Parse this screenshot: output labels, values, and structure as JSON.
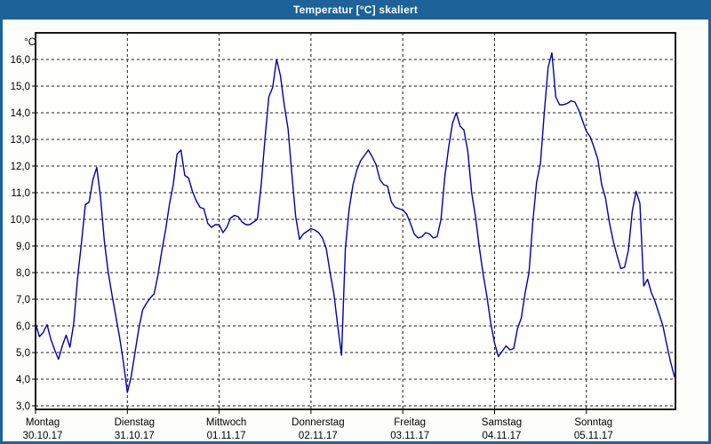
{
  "window": {
    "title": "Temperatur [°C] skaliert",
    "title_bar_color": "#1d6299",
    "border_color": "#1d6299",
    "background_color": "#fdfdfa"
  },
  "chart_data": {
    "type": "line",
    "title": "Temperatur [°C] skaliert",
    "ylabel": "°C",
    "unit_label": "°C",
    "grid": "dashed",
    "legend": "none",
    "ylim": [
      2.87,
      17.0
    ],
    "y_tick_values": [
      16,
      15,
      14,
      13,
      12,
      11,
      10,
      9,
      8,
      7,
      6,
      5,
      4,
      3
    ],
    "y_tick_labels": [
      "16,0",
      "15,0",
      "14,0",
      "13,0",
      "12,0",
      "11,0",
      "10,0",
      "9,0",
      "8,0",
      "7,0",
      "6,0",
      "5,0",
      "4,0",
      "3,0"
    ],
    "x_total_hours": 168,
    "x_ticks": [
      {
        "hour": 0,
        "day": "Montag",
        "date": "30.10.17"
      },
      {
        "hour": 24,
        "day": "Dienstag",
        "date": "31.10.17"
      },
      {
        "hour": 48,
        "day": "Mittwoch",
        "date": "01.11.17"
      },
      {
        "hour": 72,
        "day": "Donnerstag",
        "date": "02.11.17"
      },
      {
        "hour": 96,
        "day": "Freitag",
        "date": "03.11.17"
      },
      {
        "hour": 120,
        "day": "Samstag",
        "date": "04.11.17"
      },
      {
        "hour": 144,
        "day": "Sonntag",
        "date": "05.11.17"
      }
    ],
    "series": [
      {
        "name": "Temperatur",
        "color": "#0000a8",
        "x_step_hours": 1,
        "values": [
          6.1,
          5.6,
          5.75,
          6.05,
          5.5,
          5.1,
          4.75,
          5.25,
          5.65,
          5.2,
          6.1,
          7.8,
          9.1,
          10.55,
          10.65,
          11.5,
          11.95,
          10.8,
          9.15,
          8.0,
          7.15,
          6.35,
          5.55,
          4.6,
          3.5,
          4.1,
          5.0,
          5.9,
          6.6,
          6.85,
          7.05,
          7.2,
          7.9,
          8.8,
          9.6,
          10.55,
          11.3,
          12.45,
          12.6,
          11.65,
          11.55,
          11.05,
          10.7,
          10.45,
          10.4,
          9.85,
          9.7,
          9.8,
          9.8,
          9.5,
          9.7,
          10.05,
          10.15,
          10.1,
          9.9,
          9.8,
          9.8,
          9.9,
          10.0,
          11.3,
          13.05,
          14.6,
          14.95,
          16.0,
          15.4,
          14.3,
          13.4,
          11.7,
          10.1,
          9.25,
          9.45,
          9.55,
          9.65,
          9.6,
          9.5,
          9.3,
          8.9,
          8.0,
          7.2,
          6.0,
          4.9,
          8.9,
          10.4,
          11.3,
          11.85,
          12.2,
          12.4,
          12.6,
          12.35,
          12.05,
          11.5,
          11.3,
          11.25,
          10.65,
          10.45,
          10.4,
          10.35,
          10.2,
          9.85,
          9.45,
          9.3,
          9.35,
          9.5,
          9.45,
          9.3,
          9.35,
          10.0,
          11.6,
          12.7,
          13.6,
          14.0,
          13.5,
          13.35,
          12.55,
          11.0,
          10.1,
          8.95,
          7.95,
          7.1,
          6.1,
          5.35,
          4.85,
          5.05,
          5.25,
          5.1,
          5.15,
          5.9,
          6.3,
          7.25,
          8.0,
          9.9,
          11.4,
          12.1,
          14.0,
          15.7,
          16.25,
          14.6,
          14.3,
          14.3,
          14.35,
          14.45,
          14.4,
          14.1,
          13.7,
          13.3,
          13.1,
          12.7,
          12.25,
          11.3,
          10.8,
          9.9,
          9.2,
          8.65,
          8.15,
          8.2,
          8.85,
          10.3,
          11.05,
          10.6,
          7.5,
          7.75,
          7.25,
          6.9,
          6.45,
          6.0,
          5.3,
          4.65,
          4.1
        ]
      }
    ]
  }
}
